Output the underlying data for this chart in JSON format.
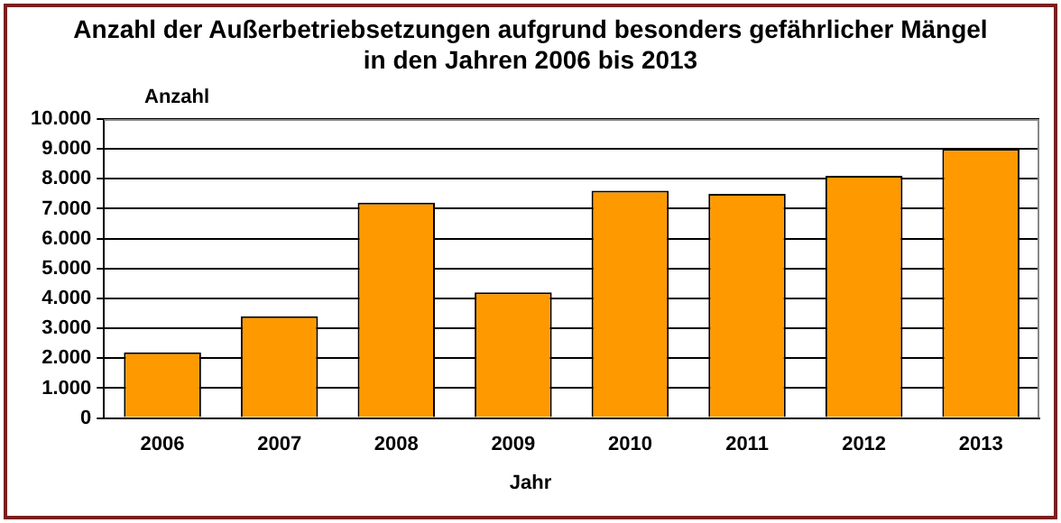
{
  "chart_data": {
    "type": "bar",
    "title": "Anzahl der Außerbetriebsetzungen aufgrund besonders gefährlicher Mängel\nin den Jahren 2006 bis 2013",
    "xlabel": "Jahr",
    "ylabel": "Anzahl",
    "categories": [
      "2006",
      "2007",
      "2008",
      "2009",
      "2010",
      "2011",
      "2012",
      "2013"
    ],
    "values": [
      2200,
      3400,
      7200,
      4200,
      7600,
      7500,
      8100,
      9000
    ],
    "color": "#ff9900",
    "ylim": [
      0,
      10000
    ],
    "yticks": [
      {
        "value": 0,
        "label": "0"
      },
      {
        "value": 1000,
        "label": "1.000"
      },
      {
        "value": 2000,
        "label": "2.000"
      },
      {
        "value": 3000,
        "label": "3.000"
      },
      {
        "value": 4000,
        "label": "4.000"
      },
      {
        "value": 5000,
        "label": "5.000"
      },
      {
        "value": 6000,
        "label": "6.000"
      },
      {
        "value": 7000,
        "label": "7.000"
      },
      {
        "value": 8000,
        "label": "8.000"
      },
      {
        "value": 9000,
        "label": "9.000"
      },
      {
        "value": 10000,
        "label": "10.000"
      }
    ],
    "grid": "y",
    "legend": false
  }
}
